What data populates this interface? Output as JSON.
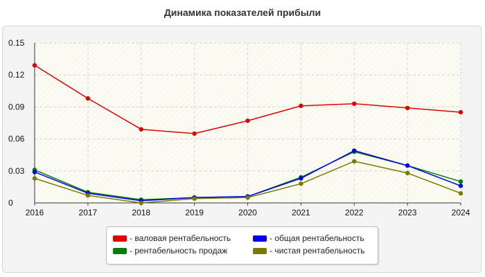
{
  "chart_data": {
    "type": "line",
    "title": "Динамика показателей прибыли",
    "xlabel": "",
    "ylabel": "",
    "x": [
      "2016",
      "2017",
      "2018",
      "2019",
      "2020",
      "2021",
      "2022",
      "2023",
      "2024"
    ],
    "ylim": [
      0,
      0.15
    ],
    "yticks": [
      "0",
      "0.03",
      "0.06",
      "0.09",
      "0.12",
      "0.15"
    ],
    "grid": true,
    "legend_position": "bottom",
    "series": [
      {
        "name": "- валовая рентабельность",
        "color": "#e00000",
        "values": [
          0.129,
          0.098,
          0.069,
          0.065,
          0.077,
          0.091,
          0.093,
          0.089,
          0.085
        ]
      },
      {
        "name": "- рентабельность продаж",
        "color": "#008000",
        "values": [
          0.031,
          0.01,
          0.003,
          0.005,
          0.006,
          0.024,
          0.048,
          0.035,
          0.02
        ]
      },
      {
        "name": "- общая рентабельность",
        "color": "#0000ee",
        "values": [
          0.029,
          0.009,
          0.002,
          0.005,
          0.006,
          0.023,
          0.049,
          0.035,
          0.016
        ]
      },
      {
        "name": "- чистая рентабельность",
        "color": "#7a7a00",
        "values": [
          0.023,
          0.007,
          0.0,
          0.004,
          0.005,
          0.018,
          0.039,
          0.028,
          0.009
        ]
      }
    ]
  }
}
